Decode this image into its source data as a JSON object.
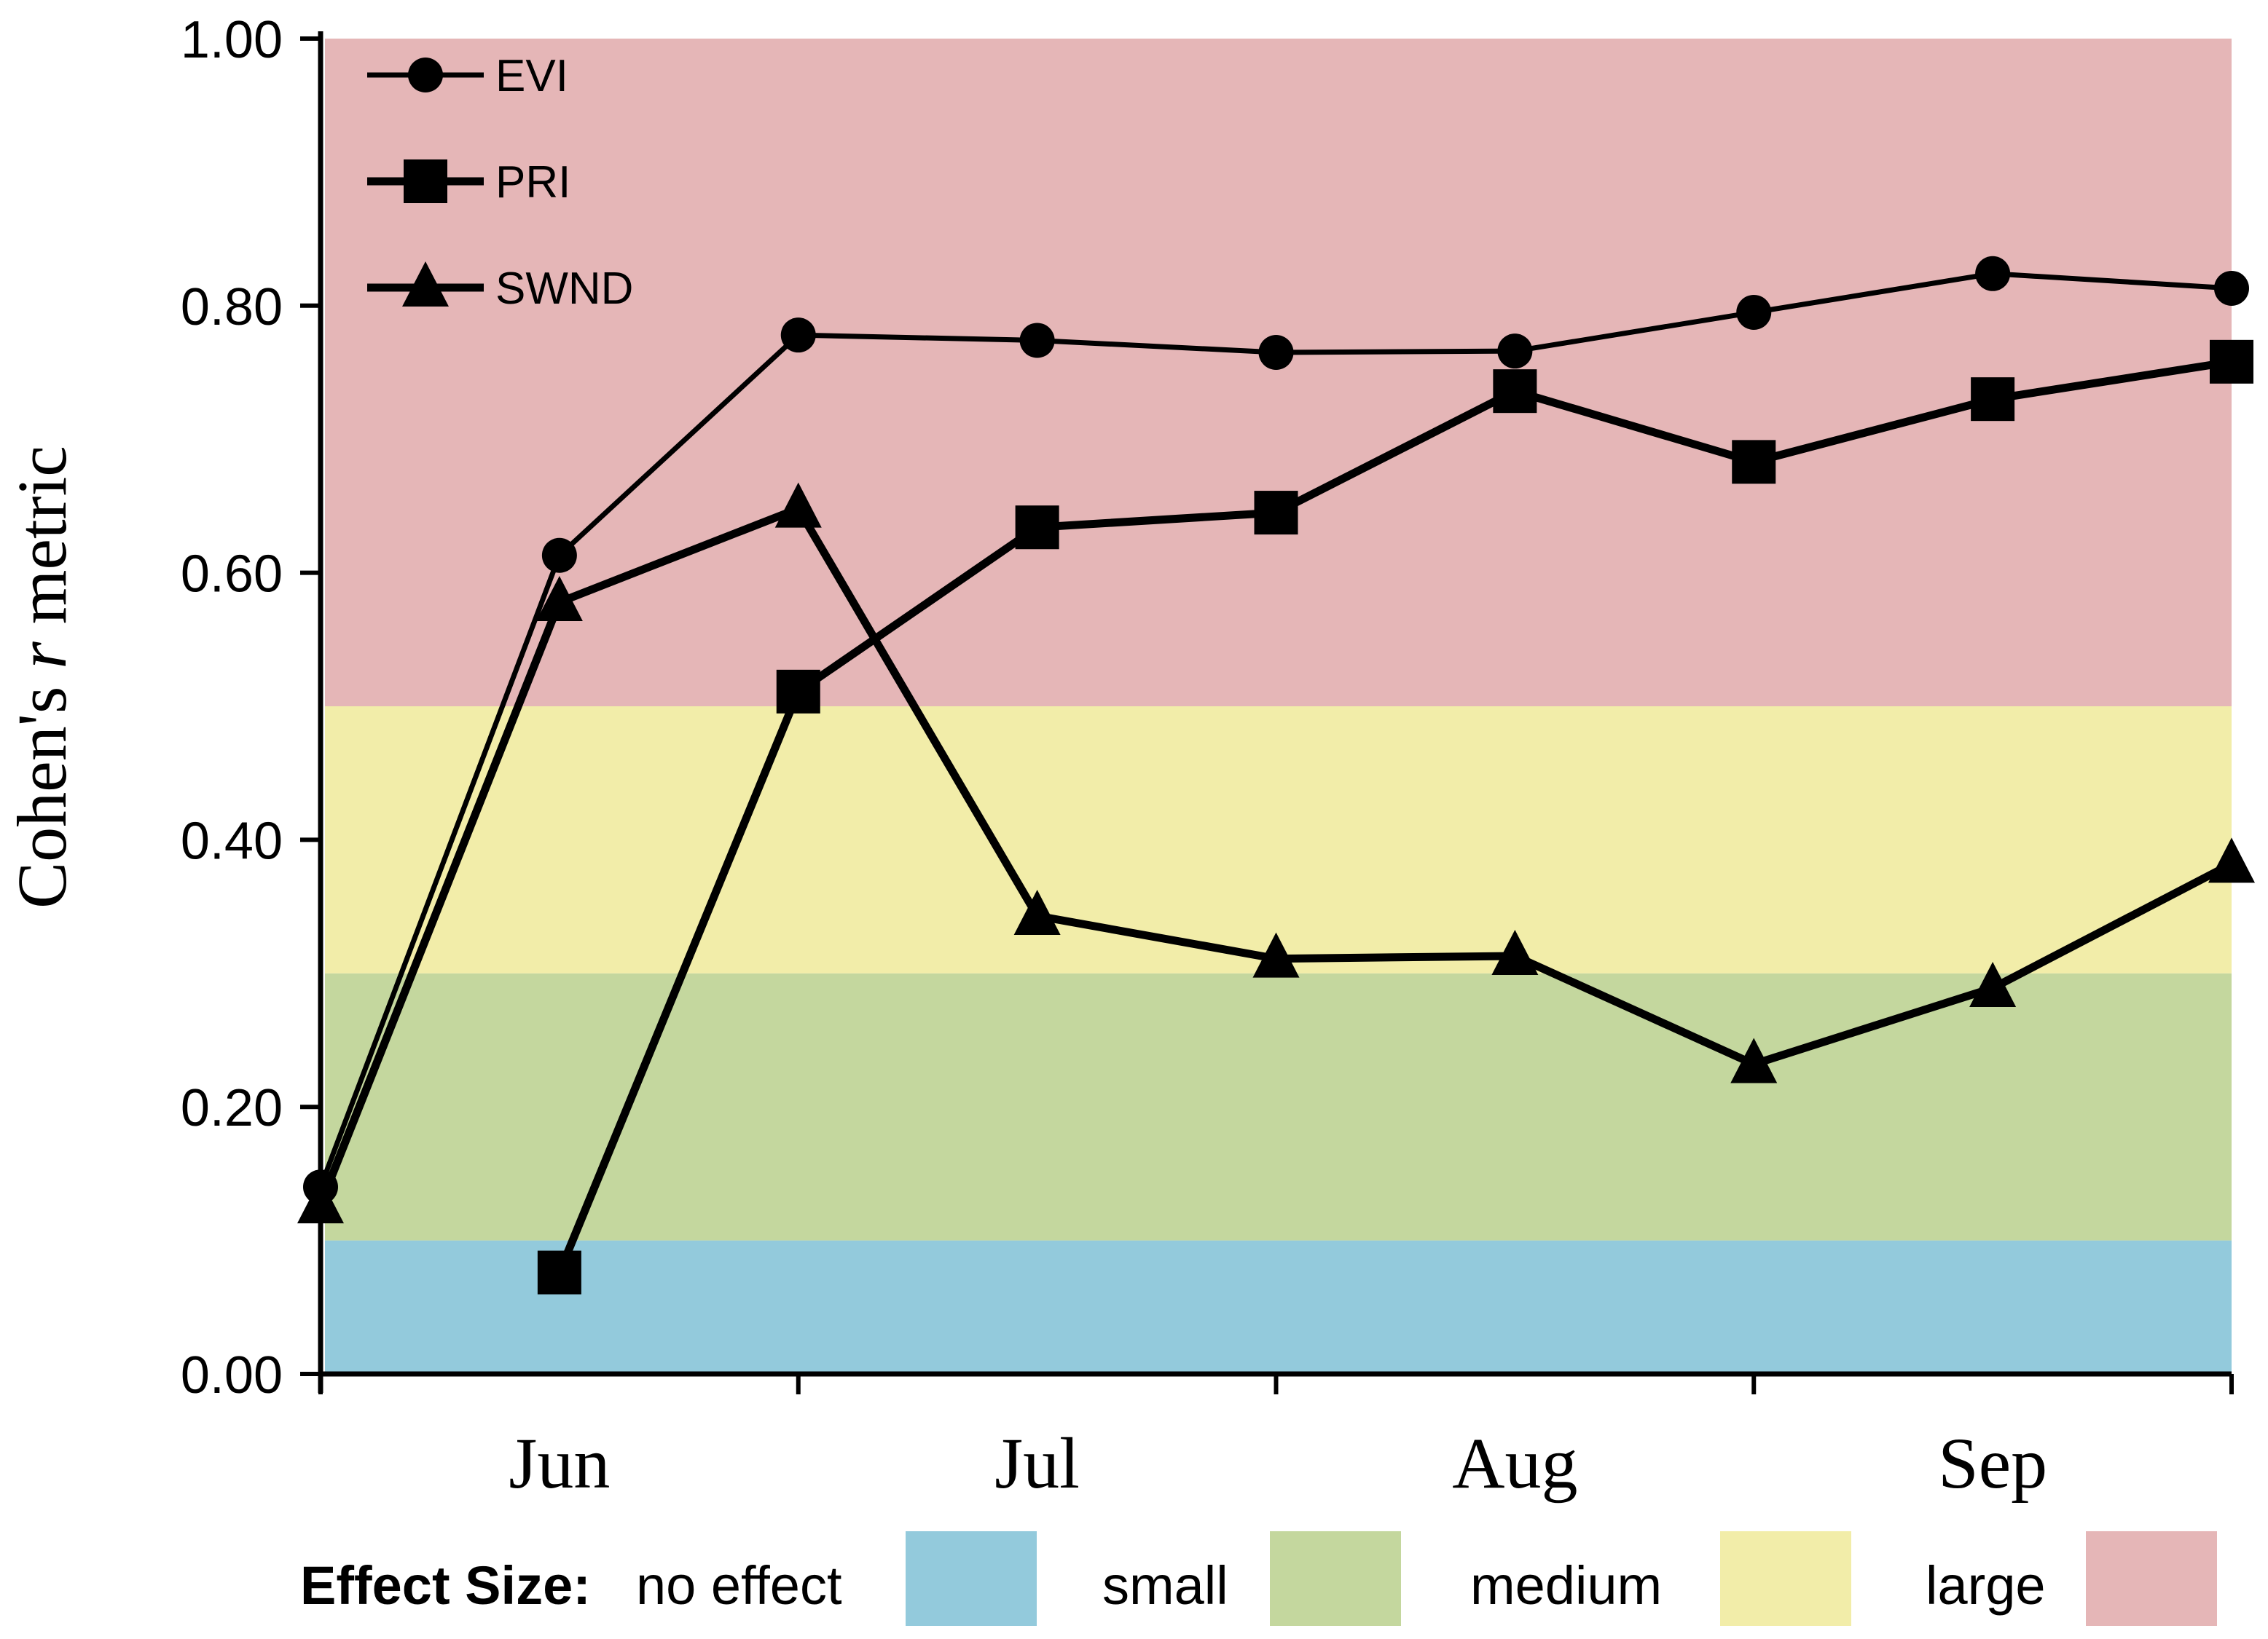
{
  "chart_data": {
    "type": "line",
    "ylabel": "Cohen's r metric",
    "ylabel_parts": [
      "Cohen's ",
      "r",
      " metric"
    ],
    "ylim": [
      0,
      1
    ],
    "yticks": [
      "0.00",
      "0.20",
      "0.40",
      "0.60",
      "0.80",
      "1.00"
    ],
    "month_labels": [
      "Jun",
      "Jul",
      "Aug",
      "Sep"
    ],
    "x": [
      0,
      1,
      2,
      3,
      4,
      5,
      6,
      7,
      8
    ],
    "series": [
      {
        "name": "EVI",
        "marker": "circle",
        "values": [
          0.14,
          0.613,
          0.778,
          0.774,
          0.765,
          0.766,
          0.795,
          0.824,
          0.813
        ]
      },
      {
        "name": "PRI",
        "marker": "square",
        "values": [
          null,
          0.076,
          0.511,
          0.634,
          0.645,
          0.736,
          0.683,
          0.73,
          0.758
        ]
      },
      {
        "name": "SWND",
        "marker": "triangle",
        "values": [
          0.127,
          0.578,
          0.648,
          0.343,
          0.311,
          0.313,
          0.232,
          0.289,
          0.382
        ]
      }
    ],
    "effect_size": {
      "title": "Effect Size:",
      "bands": [
        {
          "label": "no effect",
          "from": 0.0,
          "to": 0.1,
          "color": "#93cadc"
        },
        {
          "label": "small",
          "from": 0.1,
          "to": 0.3,
          "color": "#c4d79e"
        },
        {
          "label": "medium",
          "from": 0.3,
          "to": 0.5,
          "color": "#f2eda9"
        },
        {
          "label": "large",
          "from": 0.5,
          "to": 1.0,
          "color": "#e5b6b7"
        }
      ]
    }
  }
}
